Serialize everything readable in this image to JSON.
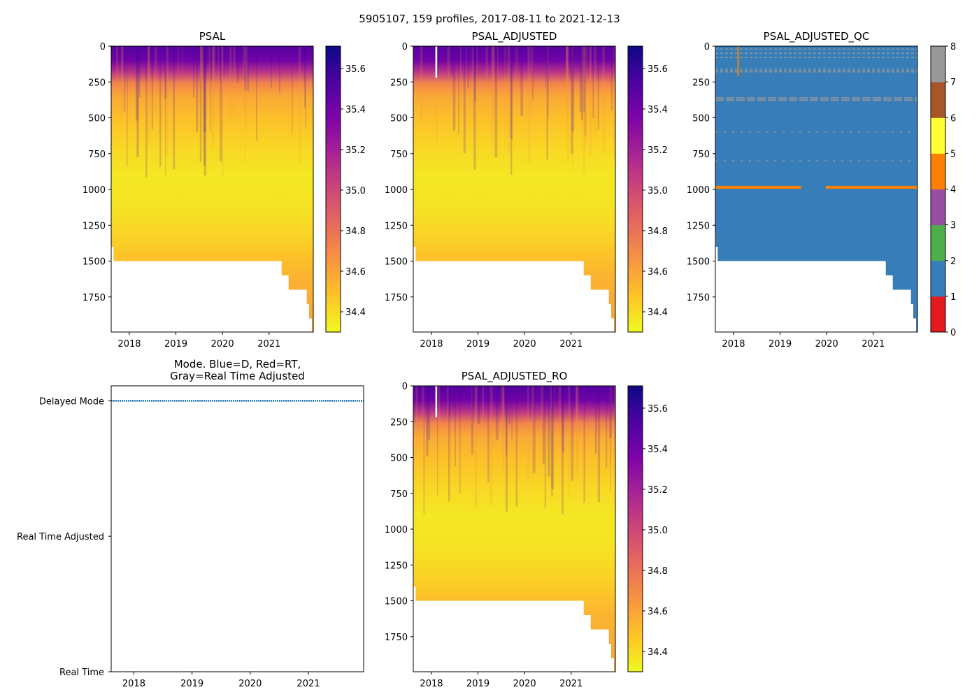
{
  "figure_title": "5905107, 159 profiles, 2017-08-11 to 2021-12-13",
  "chart_data": [
    {
      "id": "psal",
      "type": "heatmap",
      "title": "PSAL",
      "xlim": [
        2017.61,
        2021.95
      ],
      "ylim": [
        1995,
        0
      ],
      "xticks": [
        2018,
        2019,
        2020,
        2021
      ],
      "yticks": [
        0,
        250,
        500,
        750,
        1000,
        1250,
        1500,
        1750
      ],
      "colormap": "plasma_r",
      "clim": [
        34.3,
        35.71
      ],
      "colorbar_ticks": [
        34.4,
        34.6,
        34.8,
        35.0,
        35.2,
        35.4,
        35.6
      ],
      "profile_depths": [
        0,
        100,
        180,
        260,
        350,
        500,
        700,
        900,
        1100,
        1250,
        1350,
        1450,
        1600,
        1800,
        2000
      ],
      "profile_salinity": [
        35.5,
        35.4,
        35.1,
        34.72,
        34.58,
        34.5,
        34.42,
        34.36,
        34.37,
        34.41,
        34.44,
        34.48,
        34.54,
        34.58,
        34.6
      ],
      "bottom_depth_steps": [
        [
          2017.61,
          1400
        ],
        [
          2017.66,
          1500
        ],
        [
          2021.27,
          1600
        ],
        [
          2021.42,
          1700
        ],
        [
          2021.81,
          1800
        ],
        [
          2021.86,
          1900
        ],
        [
          2021.92,
          1995
        ]
      ],
      "gap_columns": []
    },
    {
      "id": "psal-adjusted",
      "type": "heatmap",
      "title": "PSAL_ADJUSTED",
      "xlim": [
        2017.61,
        2021.95
      ],
      "ylim": [
        1995,
        0
      ],
      "xticks": [
        2018,
        2019,
        2020,
        2021
      ],
      "yticks": [
        0,
        250,
        500,
        750,
        1000,
        1250,
        1500,
        1750
      ],
      "colormap": "plasma_r",
      "clim": [
        34.3,
        35.71
      ],
      "colorbar_ticks": [
        34.4,
        34.6,
        34.8,
        35.0,
        35.2,
        35.4,
        35.6
      ],
      "profile_depths": [
        0,
        100,
        180,
        260,
        350,
        500,
        700,
        900,
        1100,
        1250,
        1350,
        1450,
        1600,
        1800,
        2000
      ],
      "profile_salinity": [
        35.5,
        35.4,
        35.1,
        34.72,
        34.58,
        34.5,
        34.42,
        34.36,
        34.37,
        34.41,
        34.44,
        34.48,
        34.54,
        34.58,
        34.6
      ],
      "bottom_depth_steps": [
        [
          2017.61,
          1400
        ],
        [
          2017.66,
          1500
        ],
        [
          2021.27,
          1600
        ],
        [
          2021.42,
          1700
        ],
        [
          2021.81,
          1800
        ],
        [
          2021.86,
          1900
        ],
        [
          2021.92,
          1995
        ]
      ],
      "gap_columns": [
        [
          2018.1,
          0,
          220
        ]
      ]
    },
    {
      "id": "psal-adjusted-qc",
      "type": "heatmap",
      "title": "PSAL_ADJUSTED_QC",
      "xlim": [
        2017.61,
        2021.95
      ],
      "ylim": [
        1995,
        0
      ],
      "xticks": [
        2018,
        2019,
        2020,
        2021
      ],
      "yticks": [
        0,
        250,
        500,
        750,
        1000,
        1250,
        1500,
        1750
      ],
      "colormap": "Set1",
      "clim": [
        0,
        8
      ],
      "colorbar_ticks": [
        0,
        1,
        2,
        3,
        4,
        5,
        6,
        7,
        8
      ],
      "qc_colors": [
        "#e41a1c",
        "#377eb8",
        "#4daf4a",
        "#984ea3",
        "#ff7f00",
        "#ffff33",
        "#a65628",
        "#f781bf",
        "#999999"
      ],
      "dominant_flag": 1,
      "flag4_band": {
        "depth": [
          975,
          995
        ],
        "segments": [
          [
            2017.61,
            2019.45
          ],
          [
            2019.98,
            2021.95
          ]
        ]
      },
      "flag4_column": [
        2018.1,
        0,
        210
      ],
      "flag8_depths": [
        20,
        50,
        80,
        160,
        170,
        180,
        360,
        370,
        380,
        600,
        800
      ],
      "bottom_depth_steps": [
        [
          2017.61,
          1300
        ],
        [
          2017.62,
          1400
        ],
        [
          2017.66,
          1500
        ],
        [
          2021.27,
          1600
        ],
        [
          2021.42,
          1700
        ],
        [
          2021.81,
          1800
        ],
        [
          2021.86,
          1900
        ],
        [
          2021.92,
          1995
        ]
      ]
    },
    {
      "id": "mode",
      "type": "line",
      "title_lines": [
        "Mode. Blue=D, Red=RT,",
        "Gray=Real Time Adjusted"
      ],
      "xlim": [
        2017.61,
        2021.95
      ],
      "ylim": [
        0,
        2.11
      ],
      "xticks": [
        2018,
        2019,
        2020,
        2021
      ],
      "ytick_values": [
        2,
        1,
        0
      ],
      "ytick_labels": [
        "Delayed Mode",
        "Real Time Adjusted",
        "Real Time"
      ],
      "series": [
        {
          "name": "D",
          "color": "#1f77b4",
          "x_range": [
            2017.61,
            2021.95
          ],
          "value": 2
        }
      ]
    },
    {
      "id": "psal-adjusted-ro",
      "type": "heatmap",
      "title": "PSAL_ADJUSTED_RO",
      "xlim": [
        2017.61,
        2021.95
      ],
      "ylim": [
        1995,
        0
      ],
      "xticks": [
        2018,
        2019,
        2020,
        2021
      ],
      "yticks": [
        0,
        250,
        500,
        750,
        1000,
        1250,
        1500,
        1750
      ],
      "colormap": "plasma_r",
      "clim": [
        34.3,
        35.71
      ],
      "colorbar_ticks": [
        34.4,
        34.6,
        34.8,
        35.0,
        35.2,
        35.4,
        35.6
      ],
      "profile_depths": [
        0,
        100,
        180,
        260,
        350,
        500,
        700,
        900,
        1100,
        1250,
        1350,
        1450,
        1600,
        1800,
        2000
      ],
      "profile_salinity": [
        35.5,
        35.4,
        35.1,
        34.72,
        34.58,
        34.5,
        34.42,
        34.36,
        34.37,
        34.41,
        34.44,
        34.48,
        34.54,
        34.58,
        34.6
      ],
      "bottom_depth_steps": [
        [
          2017.61,
          1300
        ],
        [
          2017.62,
          1400
        ],
        [
          2017.66,
          1500
        ],
        [
          2021.27,
          1600
        ],
        [
          2021.42,
          1700
        ],
        [
          2021.81,
          1800
        ],
        [
          2021.86,
          1900
        ],
        [
          2021.92,
          1995
        ]
      ],
      "gap_columns": [
        [
          2018.1,
          0,
          220
        ]
      ]
    }
  ]
}
